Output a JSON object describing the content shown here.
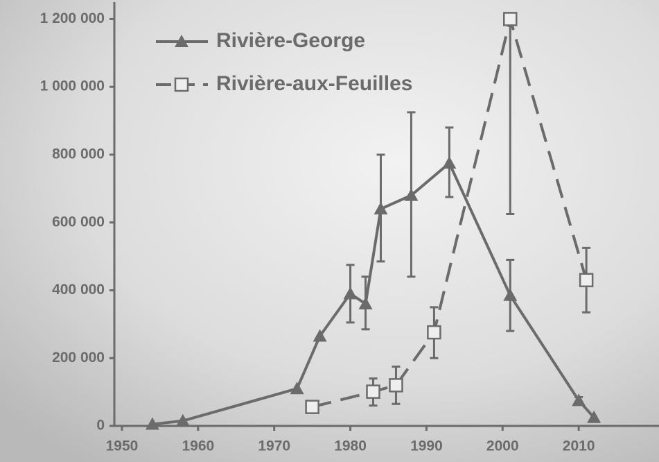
{
  "chart_data": {
    "type": "line",
    "x_label_note": null,
    "series": [
      {
        "name": "Rivière-George",
        "color": "#6b6b6b",
        "marker": "triangle",
        "dashed": false,
        "x": [
          1954,
          1958,
          1973,
          1976,
          1980,
          1982,
          1984,
          1988,
          1993,
          2001,
          2010,
          2012
        ],
        "values": [
          5000,
          15000,
          110000,
          265000,
          390000,
          360000,
          640000,
          680000,
          775000,
          385000,
          75000,
          25000
        ],
        "lower": [
          null,
          null,
          null,
          null,
          305000,
          285000,
          485000,
          440000,
          675000,
          280000,
          65000,
          null
        ],
        "upper": [
          null,
          null,
          null,
          null,
          475000,
          440000,
          800000,
          925000,
          880000,
          490000,
          85000,
          null
        ]
      },
      {
        "name": "Rivière-aux-Feuilles",
        "color": "#6b6b6b",
        "marker": "square",
        "dashed": true,
        "x": [
          1975,
          1983,
          1986,
          1991,
          2001,
          2011
        ],
        "values": [
          56000,
          101000,
          120000,
          276000,
          1200000,
          430000
        ],
        "lower": [
          null,
          60000,
          65000,
          200000,
          625000,
          335000
        ],
        "upper": [
          null,
          140000,
          175000,
          350000,
          1200000,
          525000
        ]
      }
    ],
    "xlim": [
      1949,
      2020
    ],
    "xticks": [
      1950,
      1960,
      1970,
      1980,
      1990,
      2000,
      2010
    ],
    "ylim": [
      0,
      1250000
    ],
    "yticks": [
      0,
      {
        "value": 200000,
        "label": "200 000"
      },
      {
        "value": 400000,
        "label": "400 000"
      },
      {
        "value": 600000,
        "label": "600 000"
      },
      {
        "value": 800000,
        "label": "800 000"
      },
      {
        "value": 1000000,
        "label": "1 000 000"
      },
      {
        "value": 1200000,
        "label": "1 200 000"
      }
    ],
    "legend": "top-left"
  }
}
